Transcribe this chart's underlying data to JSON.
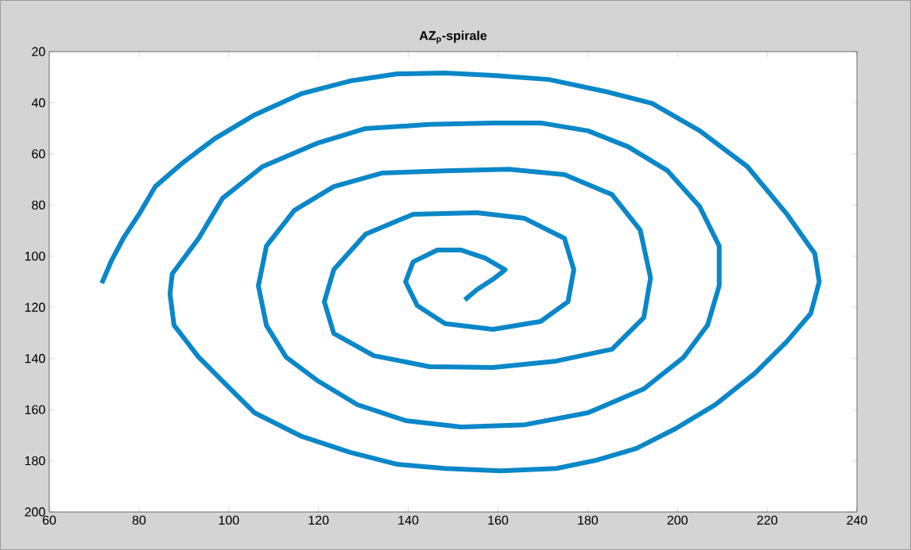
{
  "chart_data": {
    "type": "line",
    "title": "AZ$_{p}$-spirale",
    "x": [
      71.7,
      73.8,
      76.5,
      80,
      83.6,
      89.8,
      96.9,
      105.7,
      116.3,
      127,
      137.6,
      148.2,
      158.9,
      171.3,
      183.7,
      194.3,
      205,
      215.6,
      224.4,
      230.6,
      231.6,
      229.7,
      224.4,
      217.3,
      208.5,
      199.6,
      190.8,
      181.9,
      173,
      160.6,
      148.2,
      137.6,
      127,
      116.3,
      105.7,
      98.6,
      93.3,
      87.8,
      86.9,
      87.4,
      93.3,
      98.6,
      107.5,
      119.9,
      130.5,
      144.7,
      158.9,
      169.5,
      180.1,
      189,
      197.8,
      204.9,
      209.3,
      209.3,
      206.7,
      201.4,
      192.5,
      180.1,
      166,
      151.8,
      139.4,
      128.7,
      119.9,
      112.8,
      108.4,
      106.6,
      108.4,
      114.6,
      123.4,
      134.1,
      148.2,
      162.4,
      174.8,
      185.4,
      191.7,
      194,
      192.5,
      185.4,
      173,
      158.9,
      144.7,
      132.3,
      123.4,
      121.3,
      123.4,
      130.5,
      141.1,
      155.3,
      165.9,
      174.8,
      176.9,
      175.6,
      169.5,
      158.9,
      148.2,
      142,
      139.4,
      141.1,
      146.5,
      151.8,
      157.1,
      161.6,
      158.9,
      155.3,
      152.6
    ],
    "values": [
      110.6,
      102,
      93,
      83.6,
      72.8,
      63.4,
      54,
      44.8,
      36.4,
      31.5,
      28.7,
      28.4,
      29.3,
      30.9,
      35.5,
      40.2,
      51,
      65,
      83.6,
      99,
      110,
      122.4,
      133.3,
      145.7,
      158,
      167.4,
      175.2,
      179.8,
      183,
      183.9,
      183,
      181.4,
      176.7,
      170.5,
      161.2,
      148.8,
      139.5,
      127,
      114.7,
      106.9,
      93,
      77.4,
      65,
      55.7,
      50.1,
      48.5,
      47.9,
      47.9,
      51,
      57.2,
      66.6,
      80.5,
      96,
      111.6,
      127,
      139.5,
      151.9,
      161.2,
      165.9,
      166.8,
      164.3,
      158.1,
      148.8,
      139.5,
      127.1,
      111.6,
      96,
      82.1,
      72.8,
      67.5,
      66.6,
      66,
      68.1,
      75.9,
      89.8,
      108.5,
      124,
      136.4,
      141,
      143.5,
      143.2,
      138.9,
      130.2,
      117.8,
      105.3,
      91.4,
      83.6,
      83,
      85.2,
      93,
      105.3,
      117.8,
      125.5,
      128.6,
      126.4,
      119.3,
      110,
      102.2,
      97.6,
      97.6,
      100.7,
      105.3,
      109,
      113.1,
      117.1
    ],
    "color": "#0a87c8",
    "line_style": "solid",
    "marker": "none",
    "xlim": [
      60,
      240
    ],
    "ylim": [
      200,
      20
    ],
    "xticks": [
      60,
      80,
      100,
      120,
      140,
      160,
      180,
      200,
      220,
      240
    ],
    "yticks": [
      20,
      40,
      60,
      80,
      100,
      120,
      140,
      160,
      180,
      200
    ]
  }
}
